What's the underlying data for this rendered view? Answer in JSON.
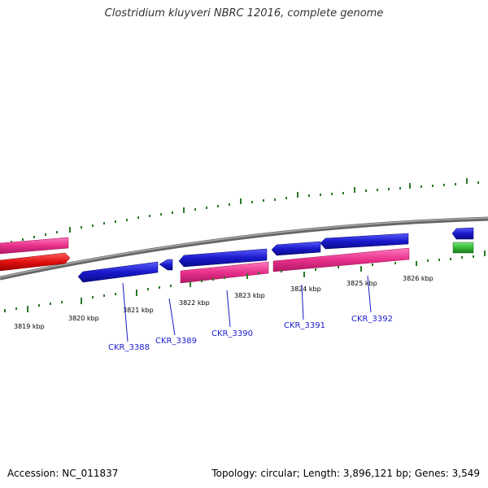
{
  "title": "Clostridium kluyveri NBRC 12016, complete genome",
  "footer": {
    "accession": "Accession: NC_011837",
    "topology": "Topology: circular; Length: 3,896,121 bp; Genes: 3,549"
  },
  "kbp_labels": [
    "3819 kbp",
    "3820 kbp",
    "3821 kbp",
    "3822 kbp",
    "3823 kbp",
    "3824 kbp",
    "3825 kbp",
    "3826 kbp"
  ],
  "genes": [
    {
      "label": "CKR_3388",
      "color": "#1a1acc"
    },
    {
      "label": "CKR_3389",
      "color": "#1a1acc"
    },
    {
      "label": "CKR_3390",
      "color": "#1a1acc"
    },
    {
      "label": "CKR_3391",
      "color": "#1a1acc"
    },
    {
      "label": "CKR_3392",
      "color": "#1a1acc"
    }
  ],
  "colors": {
    "forward_gene": "#e8308a",
    "reverse_gene": "#1a1acc",
    "rna_gene": "#e01010",
    "other_gene": "#33bb33",
    "tick": "#2a7a2a",
    "backbone": "#888888"
  }
}
